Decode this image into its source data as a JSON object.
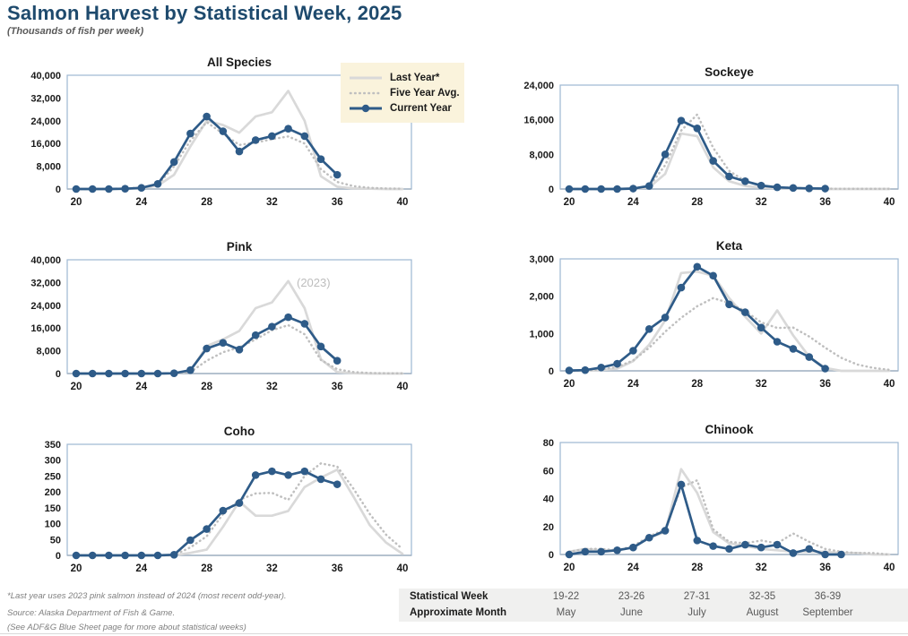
{
  "header": {
    "title": "Salmon Harvest by Statistical Week, 2025",
    "subtitle": "(Thousands of fish per week)"
  },
  "colors": {
    "title_navy": "#1e4a6d",
    "current_year": "#2e5b88",
    "last_year": "#d9d9d9",
    "five_year_avg": "#bfbfbf",
    "chart_border": "#9db7d2",
    "axis_line": "#a3b2c2",
    "legend_bg": "#faf3dc",
    "table_bg": "#f0f0ef"
  },
  "legend": {
    "position": "overlay top-right of All Species chart",
    "items": [
      {
        "key": "last",
        "label": "Last Year*"
      },
      {
        "key": "avg",
        "label": "Five Year Avg."
      },
      {
        "key": "current",
        "label": "Current Year"
      }
    ]
  },
  "annotations": {
    "pink_last_year": "(2023)"
  },
  "chart_data": [
    {
      "type": "line",
      "title": "All Species",
      "xlabel": "statistical week",
      "xlim": [
        20,
        40
      ],
      "xticks": [
        20,
        24,
        28,
        32,
        36,
        40
      ],
      "ylim": [
        0,
        40000
      ],
      "yticks": [
        0,
        8000,
        16000,
        24000,
        32000,
        40000
      ],
      "x_start_week": 20,
      "series": [
        {
          "key": "last",
          "name": "Last Year*",
          "values": [
            0,
            0,
            0,
            100,
            300,
            1200,
            5000,
            15000,
            24000,
            22500,
            19800,
            25500,
            27000,
            34500,
            24000,
            4500,
            800,
            200,
            100,
            0,
            0
          ]
        },
        {
          "key": "avg",
          "name": "Five Year Avg.",
          "values": [
            0,
            0,
            100,
            200,
            500,
            1500,
            8000,
            17000,
            23500,
            19500,
            15500,
            16300,
            17500,
            18500,
            16000,
            7000,
            2500,
            1000,
            400,
            200,
            100
          ]
        },
        {
          "key": "current",
          "name": "Current Year",
          "values": [
            0,
            0,
            0,
            100,
            400,
            1800,
            9500,
            19500,
            25500,
            20300,
            13200,
            17200,
            18600,
            21200,
            18600,
            10500,
            5000
          ]
        }
      ]
    },
    {
      "type": "line",
      "title": "Sockeye",
      "xlabel": "statistical week",
      "xlim": [
        20,
        40
      ],
      "xticks": [
        20,
        24,
        28,
        32,
        36,
        40
      ],
      "ylim": [
        0,
        24000
      ],
      "yticks": [
        0,
        8000,
        16000,
        24000
      ],
      "x_start_week": 20,
      "series": [
        {
          "key": "last",
          "name": "Last Year*",
          "values": [
            0,
            0,
            0,
            0,
            100,
            400,
            3500,
            12800,
            12200,
            5000,
            1800,
            700,
            300,
            150,
            100,
            50,
            0,
            0,
            0,
            0,
            0
          ]
        },
        {
          "key": "avg",
          "name": "Five Year Avg.",
          "values": [
            0,
            0,
            0,
            0,
            100,
            600,
            5500,
            13500,
            17200,
            9500,
            4200,
            1800,
            800,
            400,
            250,
            150,
            100,
            50,
            50,
            50,
            50
          ]
        },
        {
          "key": "current",
          "name": "Current Year",
          "values": [
            0,
            0,
            0,
            0,
            100,
            700,
            8000,
            15800,
            14000,
            6500,
            2900,
            1800,
            800,
            400,
            250,
            150,
            100
          ]
        }
      ]
    },
    {
      "type": "line",
      "title": "Pink",
      "xlabel": "statistical week",
      "xlim": [
        20,
        40
      ],
      "xticks": [
        20,
        24,
        28,
        32,
        36,
        40
      ],
      "ylim": [
        0,
        40000
      ],
      "yticks": [
        0,
        8000,
        16000,
        24000,
        32000,
        40000
      ],
      "x_start_week": 20,
      "series": [
        {
          "key": "last",
          "name": "Last Year* (2023)",
          "values": [
            0,
            0,
            0,
            0,
            0,
            0,
            100,
            800,
            9700,
            12000,
            15000,
            23000,
            25000,
            32500,
            23000,
            5000,
            500,
            100,
            0,
            0,
            0
          ]
        },
        {
          "key": "avg",
          "name": "Five Year Avg.",
          "values": [
            0,
            0,
            0,
            0,
            0,
            0,
            100,
            500,
            4500,
            7500,
            9200,
            12000,
            15200,
            17000,
            13800,
            4800,
            1500,
            500,
            200,
            100,
            100
          ]
        },
        {
          "key": "current",
          "name": "Current Year",
          "values": [
            0,
            0,
            0,
            0,
            0,
            0,
            100,
            1200,
            8800,
            10800,
            8400,
            13500,
            16500,
            19800,
            17500,
            9500,
            4500
          ]
        }
      ]
    },
    {
      "type": "line",
      "title": "Keta",
      "xlabel": "statistical week",
      "xlim": [
        20,
        40
      ],
      "xticks": [
        20,
        24,
        28,
        32,
        36,
        40
      ],
      "ylim": [
        0,
        3000
      ],
      "yticks": [
        0,
        1000,
        2000,
        3000
      ],
      "x_start_week": 20,
      "series": [
        {
          "key": "last",
          "name": "Last Year*",
          "values": [
            0,
            0,
            20,
            60,
            260,
            700,
            1350,
            2620,
            2660,
            2550,
            1950,
            1450,
            1000,
            1620,
            950,
            380,
            80,
            0,
            0,
            0,
            0
          ]
        },
        {
          "key": "avg",
          "name": "Five Year Avg.",
          "values": [
            0,
            10,
            40,
            100,
            280,
            620,
            1050,
            1420,
            1730,
            1950,
            1820,
            1600,
            1300,
            1150,
            1160,
            920,
            620,
            350,
            170,
            80,
            30
          ]
        },
        {
          "key": "current",
          "name": "Current Year",
          "values": [
            10,
            20,
            90,
            190,
            540,
            1120,
            1430,
            2230,
            2790,
            2550,
            1780,
            1570,
            1160,
            780,
            590,
            370,
            60
          ]
        }
      ]
    },
    {
      "type": "line",
      "title": "Coho",
      "xlabel": "statistical week",
      "xlim": [
        20,
        40
      ],
      "xticks": [
        20,
        24,
        28,
        32,
        36,
        40
      ],
      "ylim": [
        0,
        350
      ],
      "yticks": [
        0,
        50,
        100,
        150,
        200,
        250,
        300,
        350
      ],
      "x_start_week": 20,
      "series": [
        {
          "key": "last",
          "name": "Last Year*",
          "values": [
            0,
            0,
            0,
            0,
            0,
            0,
            0,
            8,
            18,
            90,
            170,
            125,
            125,
            140,
            215,
            245,
            270,
            185,
            95,
            40,
            5
          ]
        },
        {
          "key": "avg",
          "name": "Five Year Avg.",
          "values": [
            0,
            0,
            0,
            0,
            0,
            0,
            1,
            25,
            60,
            130,
            175,
            195,
            197,
            175,
            250,
            290,
            280,
            210,
            130,
            65,
            20
          ]
        },
        {
          "key": "current",
          "name": "Current Year",
          "values": [
            0,
            0,
            0,
            0,
            0,
            0,
            2,
            48,
            83,
            141,
            165,
            253,
            265,
            253,
            265,
            240,
            224
          ]
        }
      ]
    },
    {
      "type": "line",
      "title": "Chinook",
      "xlabel": "statistical week",
      "xlim": [
        20,
        40
      ],
      "xticks": [
        20,
        24,
        28,
        32,
        36,
        40
      ],
      "ylim": [
        0,
        80
      ],
      "yticks": [
        0,
        20,
        40,
        60,
        80
      ],
      "x_start_week": 20,
      "series": [
        {
          "key": "last",
          "name": "Last Year*",
          "values": [
            2,
            4,
            3,
            3,
            5,
            12,
            16,
            61,
            44,
            16,
            8,
            6,
            4,
            3,
            2,
            2,
            2,
            1,
            1,
            0,
            0
          ]
        },
        {
          "key": "avg",
          "name": "Five Year Avg.",
          "values": [
            2,
            4,
            4,
            3,
            6,
            13,
            18,
            48,
            53,
            18,
            9,
            8,
            10,
            8,
            15,
            9,
            4,
            2,
            1,
            1,
            0
          ]
        },
        {
          "key": "current",
          "name": "Current Year",
          "values": [
            0,
            2,
            2,
            3,
            5,
            12,
            17,
            50,
            10,
            6,
            4,
            7,
            5,
            7,
            1,
            4,
            0,
            0
          ]
        }
      ]
    }
  ],
  "footnotes": [
    "*Last year uses 2023 pink salmon instead of 2024 (most recent odd-year).",
    "Source: Alaska Department of Fish & Game.",
    "(See ADF&G Blue Sheet page for more about statistical weeks)"
  ],
  "week_table": {
    "row1_label": "Statistical Week",
    "row2_label": "Approximate Month",
    "columns": [
      {
        "weeks": "19-22",
        "month": "May"
      },
      {
        "weeks": "23-26",
        "month": "June"
      },
      {
        "weeks": "27-31",
        "month": "July"
      },
      {
        "weeks": "32-35",
        "month": "August"
      },
      {
        "weeks": "36-39",
        "month": "September"
      }
    ]
  }
}
